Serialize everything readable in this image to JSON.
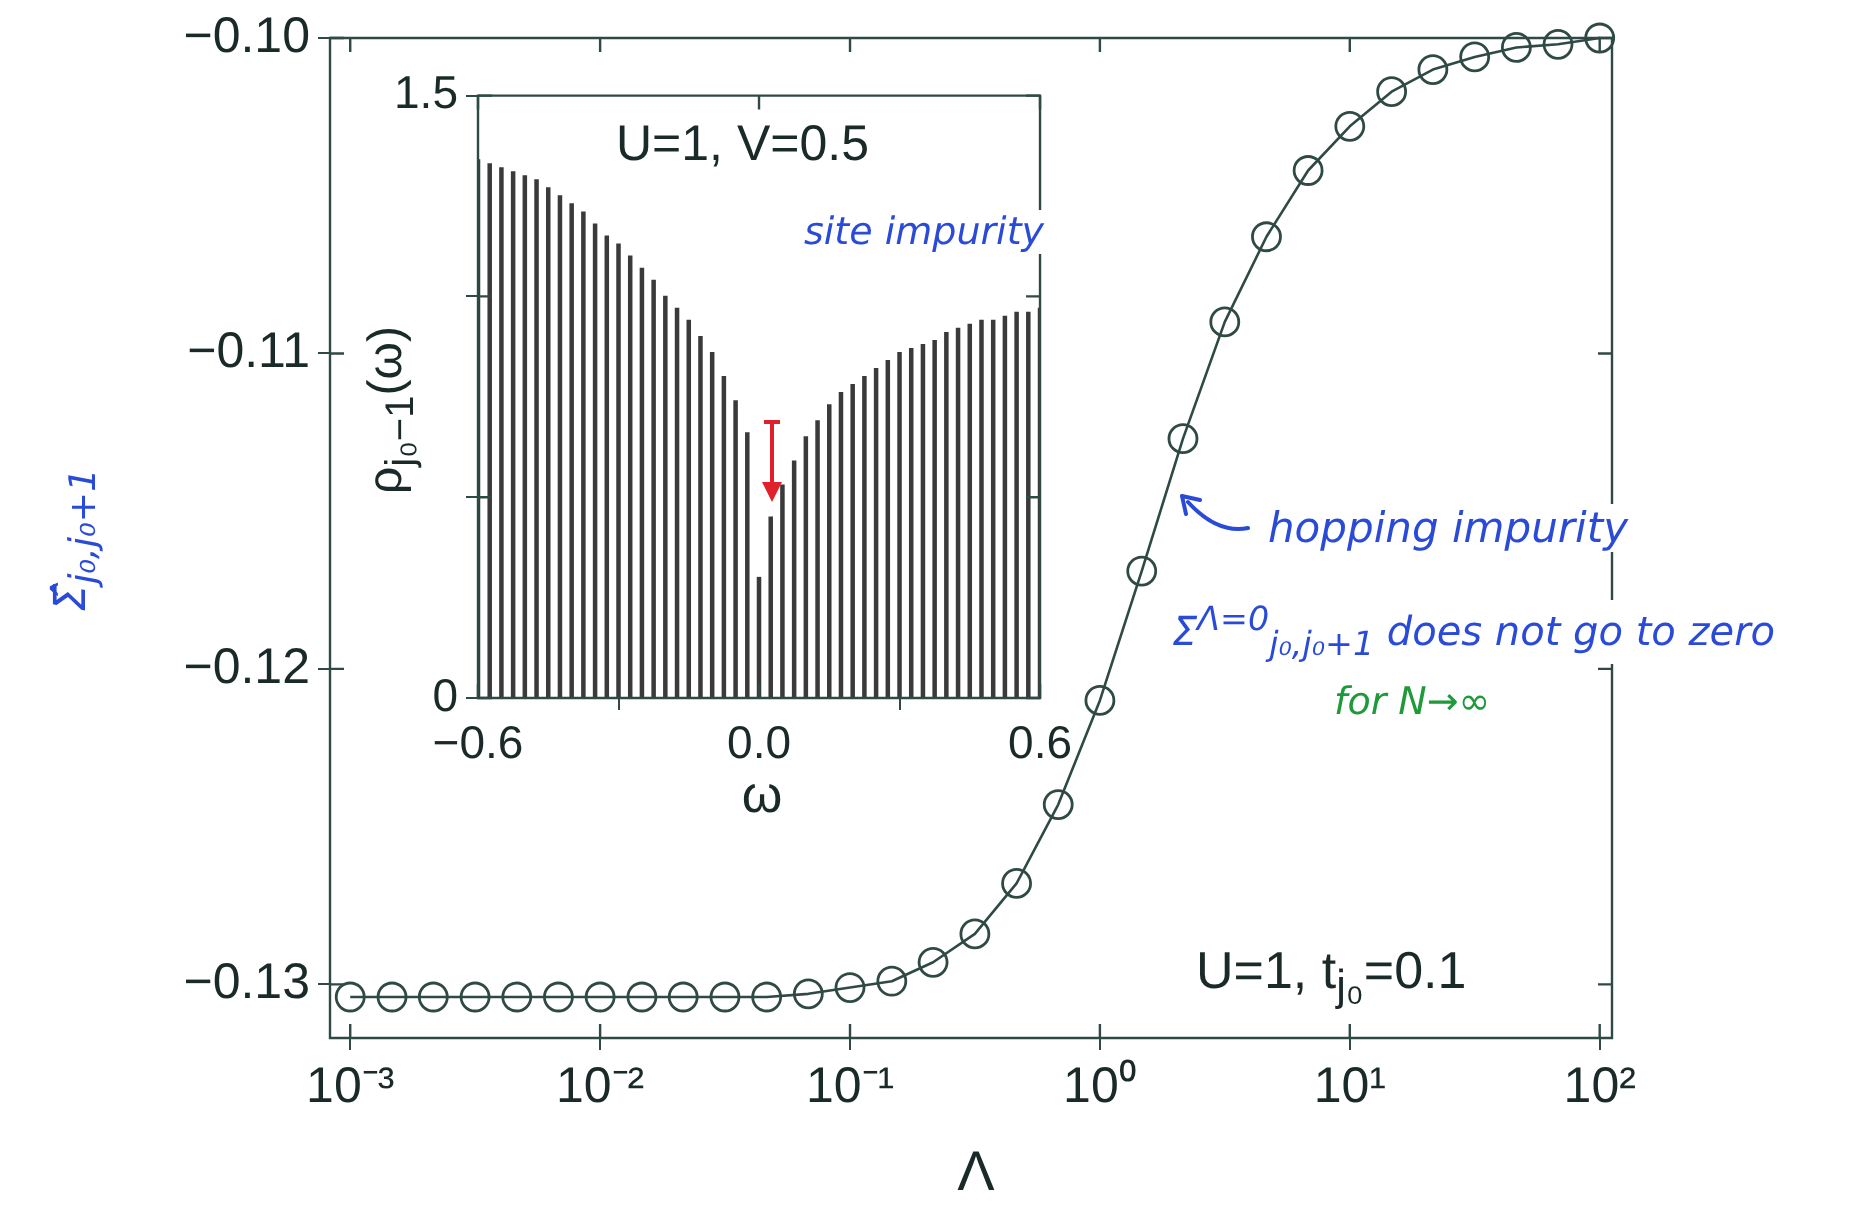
{
  "chart_data": [
    {
      "type": "line",
      "xlabel": "Λ",
      "ylabel": "Σ̂$_{j₀,j₀+1}$",
      "log": "x",
      "marker": "circle",
      "color": "#2f4a45",
      "x": [
        0.001,
        0.00147,
        0.00215,
        0.00316,
        0.00464,
        0.00681,
        0.01,
        0.0147,
        0.0215,
        0.0316,
        0.0464,
        0.0681,
        0.1,
        0.147,
        0.215,
        0.316,
        0.464,
        0.681,
        1,
        1.47,
        2.15,
        3.16,
        4.64,
        6.81,
        10,
        14.7,
        21.5,
        31.6,
        46.4,
        68.1,
        100
      ],
      "values": [
        -0.1304,
        -0.1304,
        -0.1304,
        -0.1304,
        -0.1304,
        -0.1304,
        -0.1304,
        -0.1304,
        -0.1304,
        -0.1304,
        -0.1304,
        -0.1303,
        -0.1301,
        -0.1299,
        -0.1293,
        -0.1284,
        -0.1268,
        -0.1243,
        -0.121,
        -0.1169,
        -0.1127,
        -0.109,
        -0.1063,
        -0.1042,
        -0.1028,
        -0.1017,
        -0.101,
        -0.1006,
        -0.1003,
        -0.1002,
        -0.1
      ],
      "xlim": [
        0.00083,
        112
      ],
      "xticks": [
        {
          "value": 0.001,
          "label": "10⁻³"
        },
        {
          "value": 0.01,
          "label": "10⁻²"
        },
        {
          "value": 0.1,
          "label": "10⁻¹"
        },
        {
          "value": 1,
          "label": "10⁰"
        },
        {
          "value": 10,
          "label": "10¹"
        },
        {
          "value": 100,
          "label": "10²"
        }
      ],
      "ylim": [
        -0.1317,
        -0.1
      ],
      "yticks": [
        {
          "value": -0.13,
          "label": "−0.13"
        },
        {
          "value": -0.12,
          "label": "−0.12"
        },
        {
          "value": -0.11,
          "label": "−0.11"
        },
        {
          "value": -0.1,
          "label": "−0.10"
        }
      ],
      "annotations": [
        "U=1, t$_{j₀}$=0.1",
        "hopping impurity",
        "Σ$^{Λ=0}$$_{j₀,j₀+1}$ does not go to zero",
        "for N→∞"
      ]
    },
    {
      "type": "bar",
      "xlabel": "ω",
      "ylabel": "ρ$_{j₀−1}$(ω)",
      "color": "#3a3a3a",
      "x": [
        -0.6,
        -0.575,
        -0.55,
        -0.525,
        -0.5,
        -0.475,
        -0.45,
        -0.425,
        -0.4,
        -0.375,
        -0.35,
        -0.325,
        -0.3,
        -0.275,
        -0.25,
        -0.225,
        -0.2,
        -0.175,
        -0.15,
        -0.125,
        -0.1,
        -0.075,
        -0.05,
        -0.025,
        0,
        0.025,
        0.05,
        0.075,
        0.1,
        0.125,
        0.15,
        0.175,
        0.2,
        0.225,
        0.25,
        0.275,
        0.3,
        0.325,
        0.35,
        0.375,
        0.4,
        0.425,
        0.45,
        0.475,
        0.5,
        0.525,
        0.55,
        0.575,
        0.6
      ],
      "values": [
        1.34,
        1.33,
        1.32,
        1.31,
        1.3,
        1.29,
        1.27,
        1.25,
        1.23,
        1.21,
        1.18,
        1.15,
        1.13,
        1.1,
        1.07,
        1.04,
        1.0,
        0.97,
        0.94,
        0.9,
        0.86,
        0.8,
        0.74,
        0.66,
        0.3,
        0.45,
        0.53,
        0.59,
        0.65,
        0.69,
        0.73,
        0.76,
        0.78,
        0.8,
        0.82,
        0.84,
        0.86,
        0.87,
        0.88,
        0.89,
        0.91,
        0.92,
        0.93,
        0.94,
        0.94,
        0.95,
        0.96,
        0.96,
        0.97
      ],
      "xlim": [
        -0.6,
        0.6
      ],
      "xticks": [
        {
          "value": -0.6,
          "label": "−0.6"
        },
        {
          "value": 0,
          "label": "0.0"
        },
        {
          "value": 0.6,
          "label": "0.6"
        }
      ],
      "ylim": [
        0,
        1.5
      ],
      "yticks": [
        0,
        {
          "value": 0.5,
          "label": null
        },
        {
          "value": 1,
          "label": null
        },
        1.5
      ],
      "annotations": [
        "U=1, V=0.5",
        "site impurity"
      ]
    }
  ]
}
